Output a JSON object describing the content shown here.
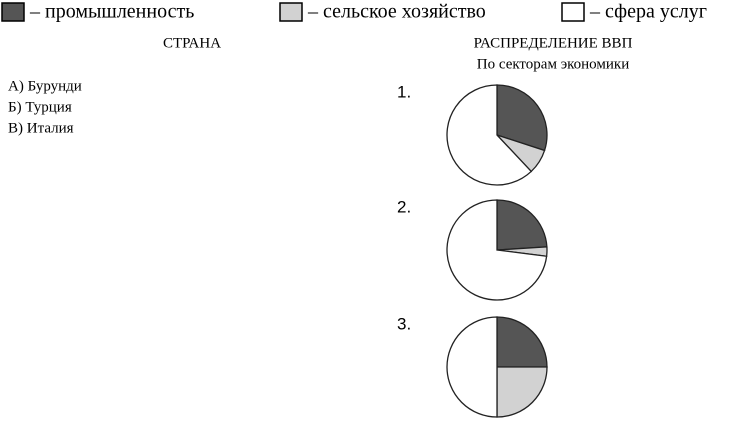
{
  "legend": [
    {
      "label": "– промышленность",
      "color": "#555555"
    },
    {
      "label": "– сельское хозяйство",
      "color": "#d2d2d2"
    },
    {
      "label": "– сфера услуг",
      "color": "#ffffff"
    }
  ],
  "left": {
    "header": "СТРАНА",
    "items": [
      "А) Бурунди",
      "Б) Турция",
      "В) Италия"
    ]
  },
  "right": {
    "header": "РАСПРЕДЕЛЕНИЕ ВВП",
    "subheader": "По секторам экономики"
  },
  "pies": [
    {
      "label": "1.",
      "values": [
        30,
        8,
        62
      ]
    },
    {
      "label": "2.",
      "values": [
        24,
        3,
        73
      ]
    },
    {
      "label": "3.",
      "values": [
        25,
        25,
        50
      ]
    }
  ]
}
